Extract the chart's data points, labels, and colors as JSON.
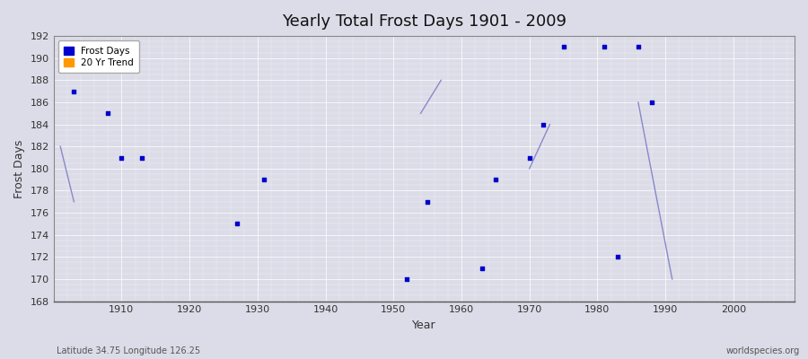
{
  "title": "Yearly Total Frost Days 1901 - 2009",
  "xlabel": "Year",
  "ylabel": "Frost Days",
  "footnote_left": "Latitude 34.75 Longitude 126.25",
  "footnote_right": "worldspecies.org",
  "ylim": [
    168,
    192
  ],
  "xlim": [
    1900,
    2009
  ],
  "yticks": [
    168,
    170,
    172,
    174,
    176,
    178,
    180,
    182,
    184,
    186,
    188,
    190,
    192
  ],
  "xticks": [
    1910,
    1920,
    1930,
    1940,
    1950,
    1960,
    1970,
    1980,
    1990,
    2000
  ],
  "background_color": "#dcdce8",
  "plot_bg_color": "#dcdce8",
  "scatter_color": "#0000cc",
  "trend_color": "#8888cc",
  "scatter_marker": "s",
  "scatter_size": 6,
  "frost_days_x": [
    1903,
    1908,
    1910,
    1913,
    1927,
    1931,
    1952,
    1955,
    1963,
    1965,
    1970,
    1972,
    1975,
    1981,
    1983,
    1986,
    1988
  ],
  "frost_days_y": [
    187,
    185,
    181,
    181,
    175,
    179,
    170,
    177,
    171,
    179,
    181,
    184,
    191,
    191,
    172,
    191,
    186
  ],
  "trend_segments": [
    {
      "x": [
        1901,
        1903
      ],
      "y": [
        182,
        177
      ]
    },
    {
      "x": [
        1954,
        1957
      ],
      "y": [
        185,
        188
      ]
    },
    {
      "x": [
        1970,
        1973
      ],
      "y": [
        180,
        184
      ]
    },
    {
      "x": [
        1986,
        1991
      ],
      "y": [
        186,
        170
      ]
    }
  ],
  "legend_entries": [
    {
      "label": "Frost Days",
      "color": "#0000cc"
    },
    {
      "label": "20 Yr Trend",
      "color": "#ff9900"
    }
  ]
}
